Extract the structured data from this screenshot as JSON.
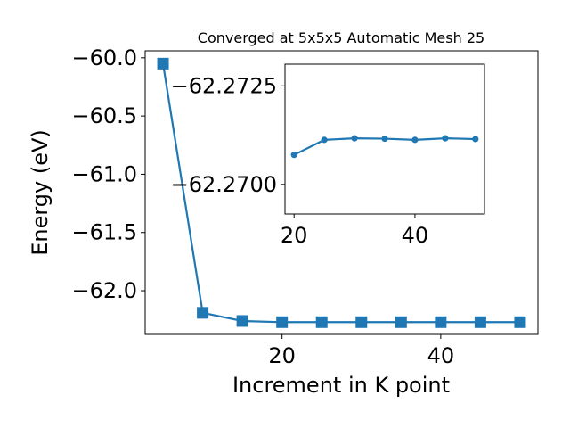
{
  "chart_data": [
    {
      "type": "line",
      "title": "Converged at 5x5x5 Automatic Mesh 25",
      "xlabel": "Increment in K point",
      "ylabel": "Energy (eV)",
      "x": [
        5,
        10,
        15,
        20,
        25,
        30,
        35,
        40,
        45,
        50
      ],
      "series": [
        {
          "values": [
            -60.05,
            -62.19,
            -62.26,
            -62.27,
            -62.27,
            -62.27,
            -62.27,
            -62.27,
            -62.27,
            -62.27
          ]
        }
      ],
      "xlim": [
        2.75,
        52.25
      ],
      "ylim": [
        -62.375,
        -59.94
      ],
      "xticks": [
        20,
        40
      ],
      "yticks": [
        -60.0,
        -60.5,
        -61.0,
        -61.5,
        -62.0
      ],
      "xtick_labels": [
        "20",
        "40"
      ],
      "ytick_labels": [
        "−60.0",
        "−60.5",
        "−61.0",
        "−61.5",
        "−62.0"
      ],
      "marker": "square",
      "color": "#1f77b4",
      "grid": false
    },
    {
      "type": "line",
      "title": "",
      "xlabel": "",
      "ylabel": "",
      "x": [
        20,
        25,
        30,
        35,
        40,
        45,
        50
      ],
      "series": [
        {
          "values": [
            -62.27075,
            -62.27113,
            -62.27117,
            -62.27116,
            -62.27113,
            -62.27117,
            -62.27115
          ]
        }
      ],
      "xlim": [
        18.5,
        51.5
      ],
      "ylim": [
        -62.26925,
        -62.27305
      ],
      "ylim_note_removed": "",
      "xticks": [
        20,
        40
      ],
      "yticks": [
        -62.2725,
        -62.27
      ],
      "xtick_labels": [
        "20",
        "40"
      ],
      "ytick_labels": [
        "−62.2725",
        "−62.2700"
      ],
      "marker": "circle",
      "color": "#1f77b4",
      "grid": false
    }
  ]
}
